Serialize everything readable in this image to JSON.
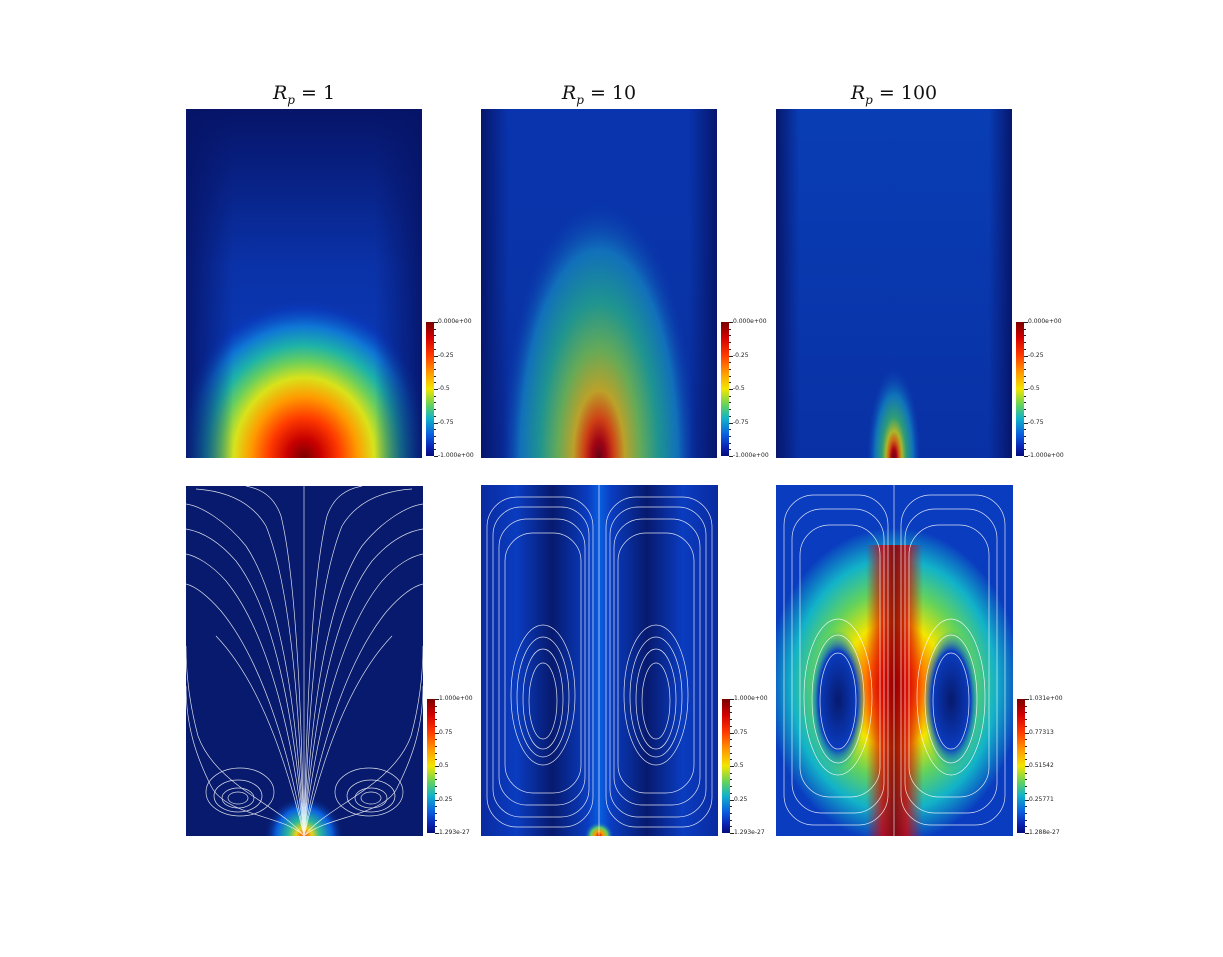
{
  "columns": [
    {
      "label_base": "R",
      "label_sub": "p",
      "label_rest": " = 1"
    },
    {
      "label_base": "R",
      "label_sub": "p",
      "label_rest": " = 10"
    },
    {
      "label_base": "R",
      "label_sub": "p",
      "label_rest": " = 100"
    }
  ],
  "colorbars": {
    "top": [
      [
        "0.000e+00",
        "-0.25",
        "-0.5",
        "-0.75",
        "-1.000e+00"
      ],
      [
        "0.000e+00",
        "-0.25",
        "-0.5",
        "-0.75",
        "-1.000e+00"
      ],
      [
        "0.000e+00",
        "-0.25",
        "-0.5",
        "-0.75",
        "-1.000e+00"
      ]
    ],
    "bottom": [
      [
        "1.000e+00",
        "0.75",
        "0.5",
        "0.25",
        "1.293e-27"
      ],
      [
        "1.000e+00",
        "0.75",
        "0.5",
        "0.25",
        "1.293e-27"
      ],
      [
        "1.031e+00",
        "0.77313",
        "0.51542",
        "0.25771",
        "1.288e-27"
      ]
    ]
  },
  "colors": {
    "background_field": "#071a6e",
    "streamline": "#ffffff",
    "colormap": [
      "#050d78",
      "#0a1fb0",
      "#0a5fe0",
      "#12b3c9",
      "#63d25c",
      "#f2e600",
      "#ff9a00",
      "#ff3b00",
      "#d40000",
      "#7a0000"
    ]
  }
}
